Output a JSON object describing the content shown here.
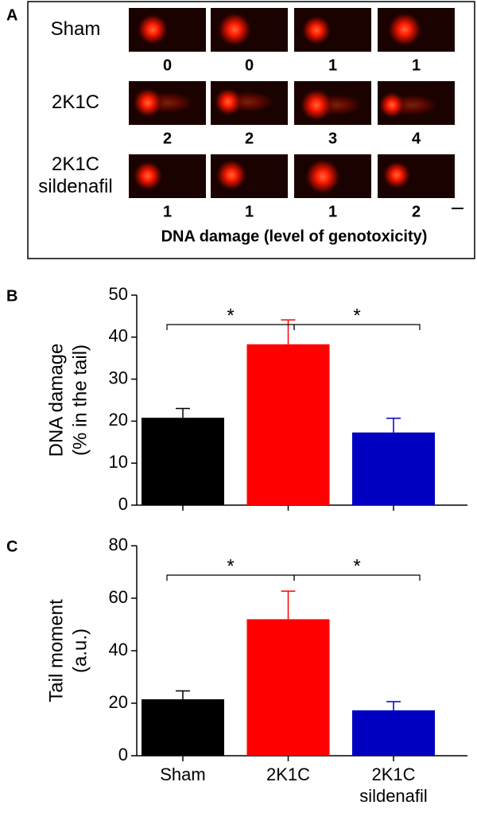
{
  "panel_a": {
    "label": "A",
    "rows": [
      {
        "label": [
          "Sham"
        ],
        "scores": [
          0,
          0,
          1,
          1
        ]
      },
      {
        "label": [
          "2K1C"
        ],
        "scores": [
          2,
          2,
          3,
          4
        ]
      },
      {
        "label": [
          "2K1C",
          "sildenafil"
        ],
        "scores": [
          1,
          1,
          1,
          2
        ]
      }
    ],
    "caption": "DNA damage (level of genotoxicity)"
  },
  "chart_data": [
    {
      "type": "bar",
      "panel": "B",
      "ylabel": [
        "DNA damage",
        "(% in the tail)"
      ],
      "categories": [
        null,
        null,
        null
      ],
      "values": [
        20.8,
        38.3,
        17.3
      ],
      "errors": [
        2.2,
        5.8,
        3.4
      ],
      "colors": [
        "#000000",
        "#ff0000",
        "#0000c0"
      ],
      "ylim": [
        0,
        50
      ],
      "yticks": [
        0,
        10,
        20,
        30,
        40,
        50
      ],
      "annotations": [
        "*",
        "*"
      ]
    },
    {
      "type": "bar",
      "panel": "C",
      "ylabel": [
        "Tail moment",
        "(a.u.)"
      ],
      "categories": [
        "Sham",
        "2K1C",
        "2K1C sildenafil"
      ],
      "values": [
        21.5,
        52,
        17.3
      ],
      "errors": [
        3.2,
        10.7,
        3.3
      ],
      "colors": [
        "#000000",
        "#ff0000",
        "#0000c0"
      ],
      "ylim": [
        0,
        80
      ],
      "yticks": [
        0,
        20,
        40,
        60,
        80
      ],
      "annotations": [
        "*",
        "*"
      ]
    }
  ]
}
